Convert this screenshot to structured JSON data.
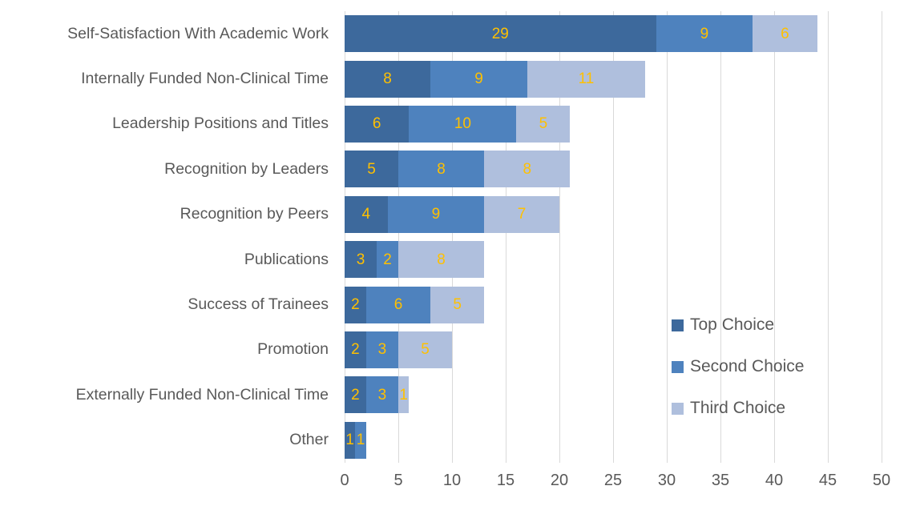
{
  "chart_data": {
    "type": "bar",
    "orientation": "horizontal",
    "stacked": true,
    "title": "",
    "xlabel": "",
    "ylabel": "",
    "xlim": [
      0,
      50
    ],
    "x_ticks": [
      0,
      5,
      10,
      15,
      20,
      25,
      30,
      35,
      40,
      45,
      50
    ],
    "grid": true,
    "legend_position": "inside-bottom-right",
    "categories": [
      "Self-Satisfaction With Academic Work",
      "Internally Funded Non-Clinical Time",
      "Leadership Positions and Titles",
      "Recognition by Leaders",
      "Recognition by Peers",
      "Publications",
      "Success of Trainees",
      "Promotion",
      "Externally Funded Non-Clinical Time",
      "Other"
    ],
    "series": [
      {
        "name": "Top Choice",
        "color": "#3d699c",
        "values": [
          29,
          8,
          6,
          5,
          4,
          3,
          2,
          2,
          2,
          1
        ]
      },
      {
        "name": "Second Choice",
        "color": "#4e82be",
        "values": [
          9,
          9,
          10,
          8,
          9,
          2,
          6,
          3,
          3,
          1
        ]
      },
      {
        "name": "Third Choice",
        "color": "#afbfdd",
        "values": [
          6,
          11,
          5,
          8,
          7,
          8,
          5,
          5,
          1,
          0
        ]
      }
    ]
  },
  "style_colors": {
    "value_label": "#ffc000",
    "axis_text": "#595959",
    "category_text": "#595959",
    "gridline": "#d9d9d9",
    "background": "#ffffff"
  }
}
